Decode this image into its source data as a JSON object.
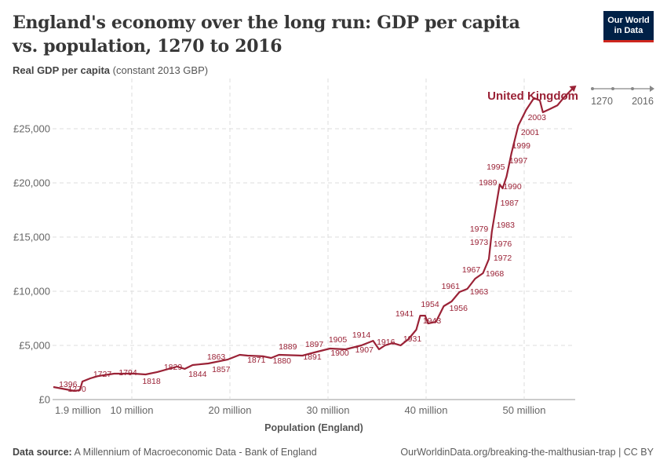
{
  "title": "England's economy over the long run: GDP per capita vs. population, 1270 to 2016",
  "subtitle": {
    "bold": "Real GDP per capita",
    "rest": "(constant 2013 GBP)"
  },
  "logo": {
    "line1": "Our World",
    "line2": "in Data"
  },
  "footer": {
    "source_label": "Data source:",
    "source": "A Millennium of Macroeconomic Data - Bank of England",
    "url": "OurWorldinData.org/breaking-the-malthusian-trap | CC BY"
  },
  "timeline": {
    "start": "1270",
    "end": "2016"
  },
  "colors": {
    "series": "#9a2236",
    "grid": "#dddddd",
    "axis": "#666666"
  },
  "chart_data": {
    "type": "line",
    "xlabel": "Population (England)",
    "ylabel": "Real GDP per capita (constant 2013 GBP)",
    "xlim": [
      0,
      55.5
    ],
    "ylim": [
      0,
      29600
    ],
    "x_ticks": [
      {
        "v": 1.9,
        "label": "1.9 million"
      },
      {
        "v": 10,
        "label": "10 million"
      },
      {
        "v": 20,
        "label": "20 million"
      },
      {
        "v": 30,
        "label": "30 million"
      },
      {
        "v": 40,
        "label": "40 million"
      },
      {
        "v": 50,
        "label": "50 million"
      }
    ],
    "y_ticks": [
      {
        "v": 0,
        "label": "£0"
      },
      {
        "v": 5000,
        "label": "£5,000"
      },
      {
        "v": 10000,
        "label": "£10,000"
      },
      {
        "v": 15000,
        "label": "£15,000"
      },
      {
        "v": 20000,
        "label": "£20,000"
      },
      {
        "v": 25000,
        "label": "£25,000"
      }
    ],
    "grid": true,
    "series": [
      {
        "name": "United Kingdom",
        "points": [
          [
            2.0,
            1160
          ],
          [
            4.16,
            800
          ],
          [
            4.7,
            870
          ],
          [
            4.96,
            1670
          ],
          [
            5.76,
            1960
          ],
          [
            6.56,
            2170
          ],
          [
            8.2,
            2390
          ],
          [
            10.2,
            2390
          ],
          [
            11.4,
            2320
          ],
          [
            12.6,
            2540
          ],
          [
            14.6,
            3040
          ],
          [
            15.4,
            2830
          ],
          [
            16.2,
            3190
          ],
          [
            17.8,
            3330
          ],
          [
            19.8,
            3700
          ],
          [
            21,
            4130
          ],
          [
            21.8,
            4060
          ],
          [
            23.4,
            3990
          ],
          [
            24.2,
            3840
          ],
          [
            25,
            4130
          ],
          [
            27.4,
            4060
          ],
          [
            28.6,
            4350
          ],
          [
            30.2,
            4710
          ],
          [
            31.8,
            4640
          ],
          [
            33.4,
            5000
          ],
          [
            34.6,
            5430
          ],
          [
            35.2,
            4640
          ],
          [
            35.8,
            5000
          ],
          [
            36.6,
            5220
          ],
          [
            37.4,
            5000
          ],
          [
            38.2,
            5580
          ],
          [
            39,
            6450
          ],
          [
            39.4,
            7750
          ],
          [
            39.9,
            7750
          ],
          [
            40.2,
            7030
          ],
          [
            41,
            7170
          ],
          [
            41.8,
            8620
          ],
          [
            42.6,
            9060
          ],
          [
            43.4,
            9930
          ],
          [
            44.2,
            10220
          ],
          [
            45,
            11160
          ],
          [
            45.8,
            11670
          ],
          [
            46.4,
            12970
          ],
          [
            46.7,
            15510
          ],
          [
            47.1,
            17680
          ],
          [
            47.5,
            19860
          ],
          [
            47.8,
            19490
          ],
          [
            48.2,
            20580
          ],
          [
            48.7,
            22750
          ],
          [
            49.4,
            25290
          ],
          [
            50.2,
            26740
          ],
          [
            51,
            27830
          ],
          [
            51.6,
            27610
          ],
          [
            51.9,
            26520
          ],
          [
            52.6,
            26810
          ],
          [
            53.4,
            27170
          ],
          [
            54,
            27830
          ],
          [
            55,
            28770
          ]
        ]
      }
    ],
    "annotations": [
      {
        "t": "1396",
        "x": 3.5,
        "y": 1450
      },
      {
        "t": "1270",
        "x": 4.4,
        "y": 1010
      },
      {
        "t": "1727",
        "x": 7.0,
        "y": 2390
      },
      {
        "t": "1794",
        "x": 9.6,
        "y": 2540
      },
      {
        "t": "1818",
        "x": 12,
        "y": 1740
      },
      {
        "t": "1829",
        "x": 14.2,
        "y": 3040
      },
      {
        "t": "1844",
        "x": 16.7,
        "y": 2390
      },
      {
        "t": "1857",
        "x": 19.1,
        "y": 2830
      },
      {
        "t": "1863",
        "x": 18.6,
        "y": 3990
      },
      {
        "t": "1871",
        "x": 22.7,
        "y": 3700
      },
      {
        "t": "1880",
        "x": 25.3,
        "y": 3620
      },
      {
        "t": "1889",
        "x": 25.9,
        "y": 4930
      },
      {
        "t": "1891",
        "x": 28.4,
        "y": 3990
      },
      {
        "t": "1897",
        "x": 28.6,
        "y": 5140
      },
      {
        "t": "1900",
        "x": 31.2,
        "y": 4350
      },
      {
        "t": "1905",
        "x": 31,
        "y": 5580
      },
      {
        "t": "1907",
        "x": 33.7,
        "y": 4640
      },
      {
        "t": "1914",
        "x": 33.4,
        "y": 6010
      },
      {
        "t": "1916",
        "x": 35.9,
        "y": 5360
      },
      {
        "t": "1931",
        "x": 38.6,
        "y": 5650
      },
      {
        "t": "1941",
        "x": 37.8,
        "y": 7970
      },
      {
        "t": "1943",
        "x": 40.6,
        "y": 7320
      },
      {
        "t": "1954",
        "x": 40.4,
        "y": 8840
      },
      {
        "t": "1956",
        "x": 43.3,
        "y": 8480
      },
      {
        "t": "1961",
        "x": 42.5,
        "y": 10510
      },
      {
        "t": "1963",
        "x": 45.4,
        "y": 10000
      },
      {
        "t": "1967",
        "x": 44.6,
        "y": 12030
      },
      {
        "t": "1968",
        "x": 47,
        "y": 11670
      },
      {
        "t": "1972",
        "x": 47.8,
        "y": 13120
      },
      {
        "t": "1973",
        "x": 45.4,
        "y": 14570
      },
      {
        "t": "1976",
        "x": 47.8,
        "y": 14420
      },
      {
        "t": "1979",
        "x": 45.4,
        "y": 15800
      },
      {
        "t": "1983",
        "x": 48.1,
        "y": 16160
      },
      {
        "t": "1987",
        "x": 48.5,
        "y": 18190
      },
      {
        "t": "1989",
        "x": 46.3,
        "y": 20070
      },
      {
        "t": "1990",
        "x": 48.8,
        "y": 19710
      },
      {
        "t": "1995",
        "x": 47.1,
        "y": 21520
      },
      {
        "t": "1997",
        "x": 49.4,
        "y": 22100
      },
      {
        "t": "1999",
        "x": 49.7,
        "y": 23480
      },
      {
        "t": "2001",
        "x": 50.6,
        "y": 24710
      },
      {
        "t": "2003",
        "x": 51.3,
        "y": 26090
      }
    ]
  }
}
